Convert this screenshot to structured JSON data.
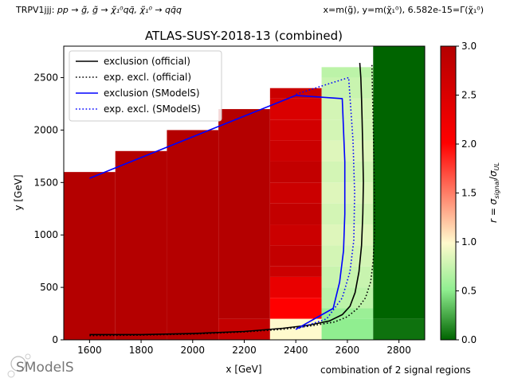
{
  "header": {
    "topology_prefix": "TRPV1jjj: ",
    "topology_process": "pp → g̃, g̃ → χ̃₁⁰qq̄, χ̃₁⁰ → qq̄q",
    "axes_definition": "x=m(g̃), y=m(χ̃₁⁰), 6.582e-15=Γ(χ̃₁⁰)"
  },
  "footer": {
    "logo_text": "SModelS",
    "signal_regions_note": "combination of 2 signal regions"
  },
  "colors": {
    "official_line": "#000000",
    "smodels_line": "#0000ff",
    "colormap": [
      "#006400",
      "#90ee90",
      "#fffacd",
      "#ff0000",
      "#b40000"
    ]
  },
  "chart_data": {
    "type": "heatmap",
    "title": "ATLAS-SUSY-2018-13 (combined)",
    "xlabel": "x [GeV]",
    "ylabel": "y [GeV]",
    "xlim": [
      1500,
      2900
    ],
    "ylim": [
      0,
      2800
    ],
    "xticks": [
      1600,
      1800,
      2000,
      2200,
      2400,
      2600,
      2800
    ],
    "yticks": [
      0,
      500,
      1000,
      1500,
      2000,
      2500
    ],
    "colorbar": {
      "label": "r = σ_signal/σ_UL",
      "range": [
        0,
        3
      ],
      "ticks": [
        0.0,
        0.5,
        1.0,
        1.5,
        2.0,
        2.5,
        3.0
      ]
    },
    "cells": [
      {
        "x0": 1500,
        "x1": 1700,
        "y0": 0,
        "y1": 1600,
        "r": 3.0
      },
      {
        "x0": 1700,
        "x1": 1900,
        "y0": 0,
        "y1": 1800,
        "r": 3.0
      },
      {
        "x0": 1900,
        "x1": 2100,
        "y0": 0,
        "y1": 2000,
        "r": 3.0
      },
      {
        "x0": 2100,
        "x1": 2300,
        "y0": 200,
        "y1": 2200,
        "r": 3.0
      },
      {
        "x0": 2100,
        "x1": 2300,
        "y0": 0,
        "y1": 200,
        "r": 2.8
      },
      {
        "x0": 2300,
        "x1": 2500,
        "y0": 2300,
        "y1": 2400,
        "r": 2.7
      },
      {
        "x0": 2300,
        "x1": 2500,
        "y0": 2100,
        "y1": 2300,
        "r": 2.5
      },
      {
        "x0": 2300,
        "x1": 2500,
        "y0": 1900,
        "y1": 2100,
        "r": 2.6
      },
      {
        "x0": 2300,
        "x1": 2500,
        "y0": 1700,
        "y1": 1900,
        "r": 2.7
      },
      {
        "x0": 2300,
        "x1": 2500,
        "y0": 1500,
        "y1": 1700,
        "r": 2.8
      },
      {
        "x0": 2300,
        "x1": 2500,
        "y0": 1300,
        "y1": 1500,
        "r": 2.7
      },
      {
        "x0": 2300,
        "x1": 2500,
        "y0": 1100,
        "y1": 1300,
        "r": 2.8
      },
      {
        "x0": 2300,
        "x1": 2500,
        "y0": 900,
        "y1": 1100,
        "r": 2.7
      },
      {
        "x0": 2300,
        "x1": 2500,
        "y0": 700,
        "y1": 900,
        "r": 2.8
      },
      {
        "x0": 2300,
        "x1": 2500,
        "y0": 600,
        "y1": 700,
        "r": 2.7
      },
      {
        "x0": 2300,
        "x1": 2500,
        "y0": 400,
        "y1": 600,
        "r": 2.3
      },
      {
        "x0": 2300,
        "x1": 2500,
        "y0": 200,
        "y1": 400,
        "r": 2.0
      },
      {
        "x0": 2300,
        "x1": 2500,
        "y0": 0,
        "y1": 200,
        "r": 1.0
      },
      {
        "x0": 2500,
        "x1": 2700,
        "y0": 2500,
        "y1": 2600,
        "r": 0.7
      },
      {
        "x0": 2500,
        "x1": 2700,
        "y0": 2300,
        "y1": 2500,
        "r": 0.75
      },
      {
        "x0": 2500,
        "x1": 2700,
        "y0": 2100,
        "y1": 2300,
        "r": 0.8
      },
      {
        "x0": 2500,
        "x1": 2700,
        "y0": 1900,
        "y1": 2100,
        "r": 0.8
      },
      {
        "x0": 2500,
        "x1": 2700,
        "y0": 1700,
        "y1": 1900,
        "r": 0.85
      },
      {
        "x0": 2500,
        "x1": 2700,
        "y0": 1500,
        "y1": 1700,
        "r": 0.8
      },
      {
        "x0": 2500,
        "x1": 2700,
        "y0": 1300,
        "y1": 1500,
        "r": 0.85
      },
      {
        "x0": 2500,
        "x1": 2700,
        "y0": 1100,
        "y1": 1300,
        "r": 0.8
      },
      {
        "x0": 2500,
        "x1": 2700,
        "y0": 900,
        "y1": 1100,
        "r": 0.85
      },
      {
        "x0": 2500,
        "x1": 2700,
        "y0": 700,
        "y1": 900,
        "r": 0.8
      },
      {
        "x0": 2500,
        "x1": 2700,
        "y0": 500,
        "y1": 700,
        "r": 0.75
      },
      {
        "x0": 2500,
        "x1": 2700,
        "y0": 300,
        "y1": 500,
        "r": 0.7
      },
      {
        "x0": 2500,
        "x1": 2700,
        "y0": 200,
        "y1": 300,
        "r": 0.55
      },
      {
        "x0": 2500,
        "x1": 2700,
        "y0": 0,
        "y1": 200,
        "r": 0.5
      },
      {
        "x0": 2700,
        "x1": 2900,
        "y0": 200,
        "y1": 2800,
        "r": 0.0
      },
      {
        "x0": 2700,
        "x1": 2900,
        "y0": 0,
        "y1": 200,
        "r": 0.05
      }
    ],
    "series": [
      {
        "name": "exclusion (official)",
        "style": "solid",
        "color": "#000000",
        "x": [
          1600,
          1800,
          2000,
          2200,
          2350,
          2450,
          2530,
          2580,
          2610,
          2630,
          2645,
          2655,
          2660,
          2662,
          2660,
          2657,
          2655,
          2652,
          2648
        ],
        "y": [
          50,
          50,
          60,
          80,
          110,
          140,
          180,
          240,
          320,
          450,
          650,
          900,
          1200,
          1500,
          1800,
          2100,
          2300,
          2500,
          2640
        ]
      },
      {
        "name": "exp. excl. (official)",
        "style": "dotted",
        "color": "#000000",
        "x": [
          1600,
          1800,
          2000,
          2200,
          2350,
          2450,
          2550,
          2600,
          2640,
          2670,
          2690,
          2700,
          2705,
          2705,
          2703,
          2700,
          2697,
          2695
        ],
        "y": [
          40,
          45,
          55,
          75,
          100,
          130,
          170,
          220,
          300,
          400,
          550,
          750,
          1000,
          1300,
          1700,
          2100,
          2400,
          2640
        ]
      },
      {
        "name": "exclusion (SModelS)",
        "style": "solid",
        "color": "#0000ff",
        "x": [
          2400,
          2545,
          2570,
          2585,
          2590,
          2590,
          2580,
          2400,
          1600
        ],
        "y": [
          100,
          300,
          550,
          850,
          1200,
          1700,
          2300,
          2330,
          1540
        ]
      },
      {
        "name": "exp. excl. (SModelS)",
        "style": "dotted",
        "color": "#0000ff",
        "x": [
          2400,
          2520,
          2580,
          2610,
          2625,
          2628,
          2622,
          2605,
          2500,
          2400
        ],
        "y": [
          100,
          200,
          400,
          650,
          950,
          1400,
          1900,
          2500,
          2420,
          2340
        ]
      }
    ],
    "legend": {
      "placement": "top-left",
      "entries": [
        {
          "label": "exclusion (official)",
          "style": "solid",
          "color": "#000000"
        },
        {
          "label": "exp. excl. (official)",
          "style": "dotted",
          "color": "#000000"
        },
        {
          "label": "exclusion (SModelS)",
          "style": "solid",
          "color": "#0000ff"
        },
        {
          "label": "exp. excl. (SModelS)",
          "style": "dotted",
          "color": "#0000ff"
        }
      ]
    }
  }
}
